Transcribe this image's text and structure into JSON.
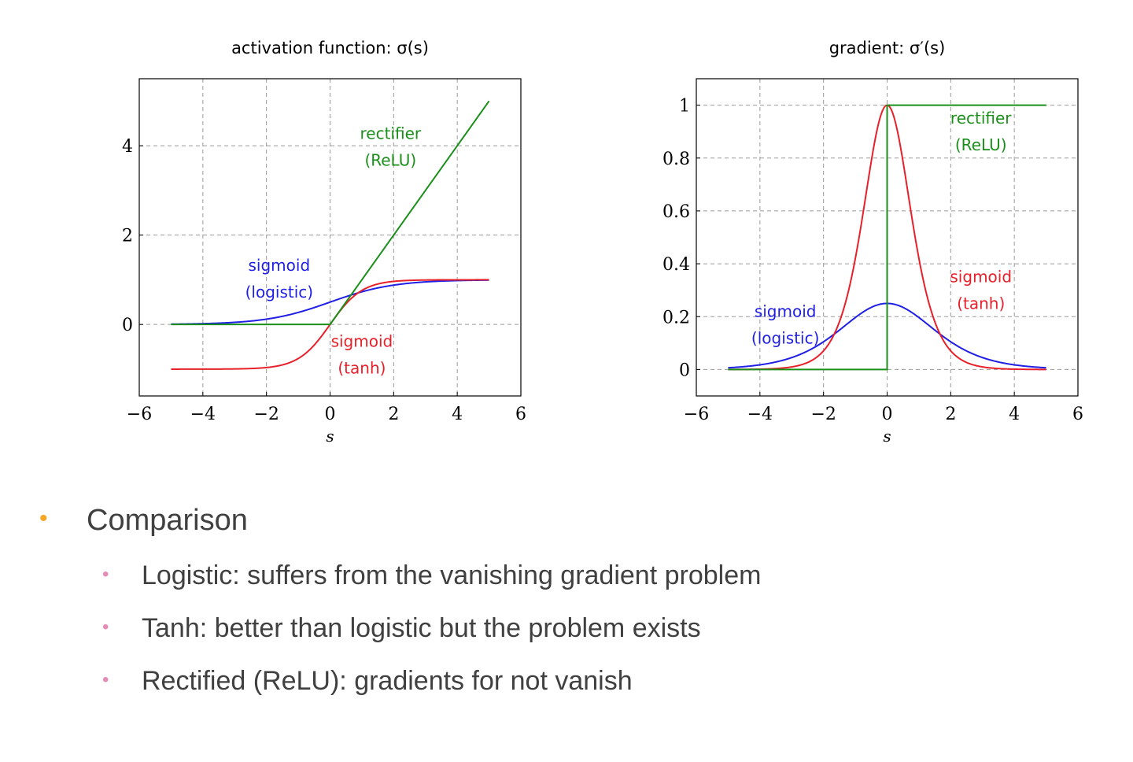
{
  "chart_data": [
    {
      "type": "line",
      "title": "activation function: σ(s)",
      "xlabel": "s",
      "ylabel": "",
      "xlim": [
        -6,
        6
      ],
      "ylim": [
        -1.6,
        5.5
      ],
      "xticks": [
        -6,
        -4,
        -2,
        0,
        2,
        4,
        6
      ],
      "yticks": [
        0,
        2,
        4
      ],
      "xtick_labels": [
        "−6",
        "−4",
        "−2",
        "0",
        "2",
        "4",
        "6"
      ],
      "ytick_labels": [
        "0",
        "2",
        "4"
      ],
      "grid": true,
      "series": [
        {
          "name": "sigmoid (logistic)",
          "function": "logistic",
          "domain": [
            -5,
            5
          ],
          "color": "#1f1fe6",
          "x": [
            -5,
            -4,
            -3,
            -2,
            -1,
            0,
            1,
            2,
            3,
            4,
            5
          ],
          "y": [
            0.007,
            0.018,
            0.047,
            0.119,
            0.269,
            0.5,
            0.731,
            0.881,
            0.953,
            0.982,
            0.993
          ]
        },
        {
          "name": "sigmoid (tanh)",
          "function": "tanh",
          "domain": [
            -5,
            5
          ],
          "color": "#e8202a",
          "x": [
            -5,
            -4,
            -3,
            -2,
            -1,
            0,
            1,
            2,
            3,
            4,
            5
          ],
          "y": [
            -1.0,
            -0.999,
            -0.995,
            -0.964,
            -0.762,
            0,
            0.762,
            0.964,
            0.995,
            0.999,
            1.0
          ]
        },
        {
          "name": "rectifier (ReLU)",
          "function": "relu",
          "domain": [
            -5,
            5
          ],
          "color": "#1a8f1a",
          "x": [
            -5,
            0,
            5
          ],
          "y": [
            0,
            0,
            5
          ]
        }
      ],
      "annotations": [
        {
          "lines": [
            "rectifier",
            "(ReLU)"
          ],
          "color": "#1a8f1a",
          "x": 1.9,
          "y": 4.15
        },
        {
          "lines": [
            "sigmoid",
            "(logistic)"
          ],
          "color": "#1f1fe6",
          "x": -1.6,
          "y": 1.2
        },
        {
          "lines": [
            "sigmoid",
            "(tanh)"
          ],
          "color": "#e8202a",
          "x": 1.0,
          "y": -0.5
        }
      ]
    },
    {
      "type": "line",
      "title": "gradient: σ′(s)",
      "xlabel": "s",
      "ylabel": "",
      "xlim": [
        -6,
        6
      ],
      "ylim": [
        -0.1,
        1.1
      ],
      "xticks": [
        -6,
        -4,
        -2,
        0,
        2,
        4,
        6
      ],
      "yticks": [
        0,
        0.2,
        0.4,
        0.6,
        0.8,
        1
      ],
      "xtick_labels": [
        "−6",
        "−4",
        "−2",
        "0",
        "2",
        "4",
        "6"
      ],
      "ytick_labels": [
        "0",
        "0.2",
        "0.4",
        "0.6",
        "0.8",
        "1"
      ],
      "grid": true,
      "series": [
        {
          "name": "sigmoid (logistic)",
          "function": "dlogistic",
          "domain": [
            -5,
            5
          ],
          "color": "#1f1fe6",
          "x": [
            -5,
            -4,
            -3,
            -2,
            -1,
            0,
            1,
            2,
            3,
            4,
            5
          ],
          "y": [
            0.007,
            0.018,
            0.045,
            0.105,
            0.197,
            0.25,
            0.197,
            0.105,
            0.045,
            0.018,
            0.007
          ]
        },
        {
          "name": "sigmoid (tanh)",
          "function": "dtanh",
          "domain": [
            -5,
            5
          ],
          "color": "#e8202a",
          "x": [
            -5,
            -4,
            -3,
            -2,
            -1,
            0,
            1,
            2,
            3,
            4,
            5
          ],
          "y": [
            0,
            0.001,
            0.01,
            0.071,
            0.42,
            1,
            0.42,
            0.071,
            0.01,
            0.001,
            0
          ]
        },
        {
          "name": "rectifier (ReLU)",
          "function": "drelu",
          "domain": [
            -5,
            5
          ],
          "color": "#1a8f1a",
          "x": [
            -5,
            0,
            0,
            5
          ],
          "y": [
            0,
            0,
            1,
            1
          ]
        }
      ],
      "annotations": [
        {
          "lines": [
            "rectifier",
            "(ReLU)"
          ],
          "color": "#1a8f1a",
          "x": 2.95,
          "y": 0.93
        },
        {
          "lines": [
            "sigmoid",
            "(logistic)"
          ],
          "color": "#1f1fe6",
          "x": -3.2,
          "y": 0.2
        },
        {
          "lines": [
            "sigmoid",
            "(tanh)"
          ],
          "color": "#e8202a",
          "x": 2.95,
          "y": 0.33
        }
      ]
    }
  ],
  "bullets": {
    "main": "Comparison",
    "items": [
      "Logistic: suffers from the vanishing gradient problem",
      "Tanh: better than logistic but the problem exists",
      "Rectified (ReLU): gradients for not vanish"
    ],
    "main_dot": "•",
    "sub_dot": "•",
    "main_dot_color": "#f5a623",
    "sub_dot_color": "#e58bb5"
  }
}
